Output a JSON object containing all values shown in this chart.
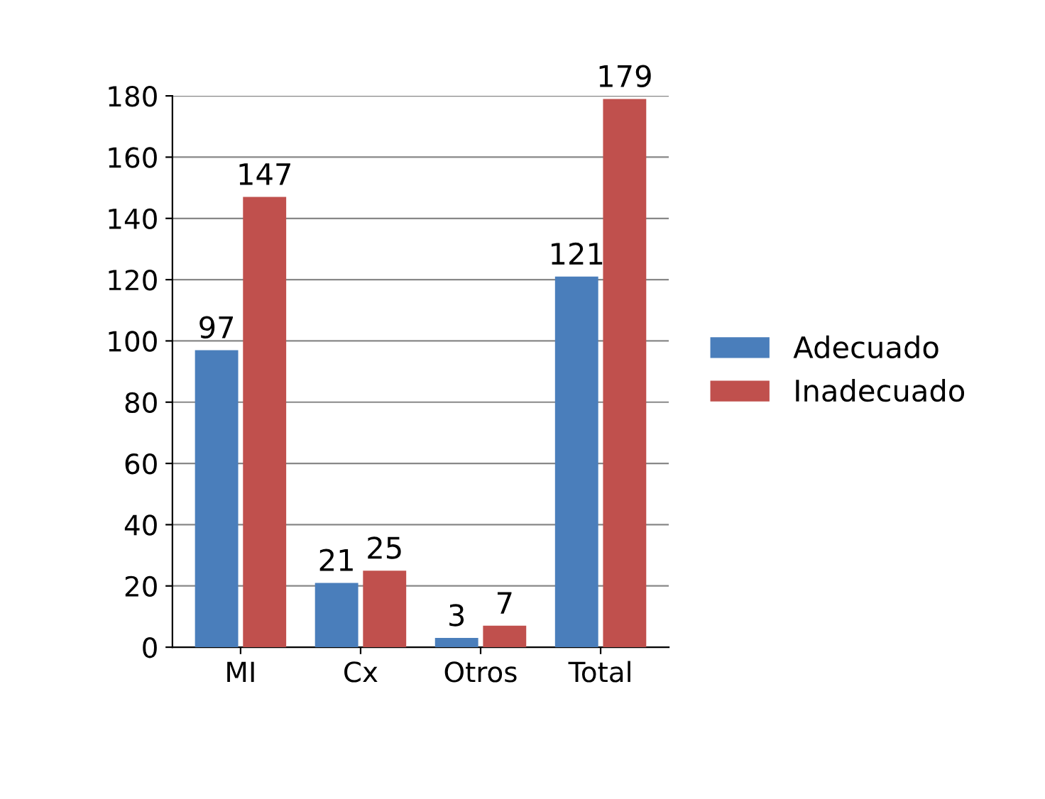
{
  "chart_data": {
    "type": "bar",
    "categories": [
      "MI",
      "Cx",
      "Otros",
      "Total"
    ],
    "series": [
      {
        "name": "Adecuado",
        "color": "#4a7ebb",
        "values": [
          97,
          21,
          3,
          121
        ]
      },
      {
        "name": "Inadecuado",
        "color": "#c0504d",
        "values": [
          147,
          25,
          7,
          179
        ]
      }
    ],
    "ylim": [
      0,
      180
    ],
    "yticks": [
      0,
      20,
      40,
      60,
      80,
      100,
      120,
      140,
      160,
      180
    ],
    "grid": "y",
    "legend": "right",
    "data_labels": true
  }
}
